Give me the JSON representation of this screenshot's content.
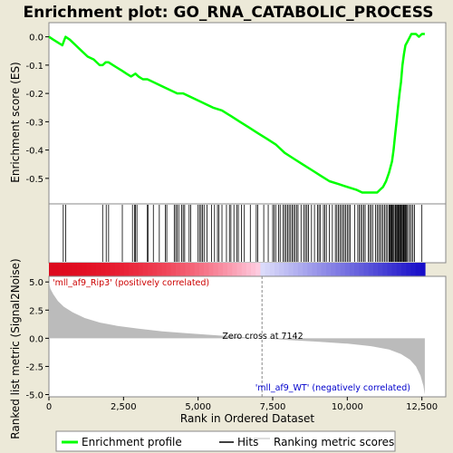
{
  "chart_data": {
    "type": "line",
    "title": "Enrichment plot: GO_RNA_CATABOLIC_PROCESS",
    "top_panel": {
      "ylabel": "Enrichment score (ES)",
      "ylim": [
        -0.59,
        0.05
      ],
      "yticks": [
        {
          "value": 0.0,
          "label": "0.0"
        },
        {
          "value": -0.1,
          "label": "-0.1"
        },
        {
          "value": -0.2,
          "label": "-0.2"
        },
        {
          "value": -0.3,
          "label": "-0.3"
        },
        {
          "value": -0.4,
          "label": "-0.4"
        },
        {
          "value": -0.5,
          "label": "-0.5"
        }
      ],
      "series": [
        {
          "name": "Enrichment profile",
          "color": "#00ff00",
          "x": [
            0,
            150,
            300,
            450,
            520,
            560,
            700,
            900,
            1100,
            1300,
            1500,
            1700,
            1800,
            1900,
            2000,
            2150,
            2300,
            2450,
            2600,
            2750,
            2900,
            3000,
            3150,
            3300,
            3500,
            3700,
            3900,
            4100,
            4300,
            4500,
            4700,
            4900,
            5100,
            5300,
            5500,
            5800,
            6100,
            6400,
            6700,
            7000,
            7300,
            7600,
            7900,
            8200,
            8500,
            8800,
            9100,
            9400,
            9700,
            10000,
            10300,
            10500,
            10700,
            10900,
            11000,
            11100,
            11200,
            11300,
            11400,
            11500,
            11550,
            11600,
            11650,
            11700,
            11750,
            11800,
            11850,
            11900,
            11950,
            12000,
            12050,
            12100,
            12150,
            12200,
            12300,
            12400,
            12500,
            12600
          ],
          "y": [
            0.0,
            -0.01,
            -0.02,
            -0.03,
            -0.01,
            0.0,
            -0.01,
            -0.03,
            -0.05,
            -0.07,
            -0.08,
            -0.1,
            -0.1,
            -0.09,
            -0.09,
            -0.1,
            -0.11,
            -0.12,
            -0.13,
            -0.14,
            -0.13,
            -0.14,
            -0.15,
            -0.15,
            -0.16,
            -0.17,
            -0.18,
            -0.19,
            -0.2,
            -0.2,
            -0.21,
            -0.22,
            -0.23,
            -0.24,
            -0.25,
            -0.26,
            -0.28,
            -0.3,
            -0.32,
            -0.34,
            -0.36,
            -0.38,
            -0.41,
            -0.43,
            -0.45,
            -0.47,
            -0.49,
            -0.51,
            -0.52,
            -0.53,
            -0.54,
            -0.55,
            -0.55,
            -0.55,
            -0.55,
            -0.54,
            -0.53,
            -0.51,
            -0.48,
            -0.44,
            -0.4,
            -0.35,
            -0.3,
            -0.25,
            -0.2,
            -0.16,
            -0.1,
            -0.06,
            -0.03,
            -0.02,
            -0.01,
            0.0,
            0.01,
            0.01,
            0.01,
            0.0,
            0.01,
            0.01
          ]
        }
      ]
    },
    "hits": [
      480,
      560,
      1800,
      1920,
      2000,
      2460,
      2800,
      2870,
      2900,
      2950,
      3300,
      3320,
      3500,
      3700,
      3900,
      3950,
      4200,
      4250,
      4300,
      4350,
      4450,
      4500,
      4550,
      4700,
      4750,
      5000,
      5050,
      5100,
      5150,
      5200,
      5300,
      5450,
      5550,
      5650,
      5700,
      5800,
      5950,
      6050,
      6100,
      6200,
      6300,
      6350,
      6450,
      6550,
      6750,
      6950,
      7000,
      7200,
      7350,
      7500,
      7550,
      7600,
      7700,
      7750,
      7850,
      7900,
      7950,
      8000,
      8050,
      8100,
      8150,
      8200,
      8250,
      8300,
      8350,
      8450,
      8550,
      8600,
      8650,
      8700,
      8800,
      8900,
      9000,
      9050,
      9100,
      9200,
      9250,
      9300,
      9400,
      9500,
      9600,
      9650,
      9700,
      9750,
      9800,
      9850,
      9900,
      9950,
      10000,
      10050,
      10100,
      10250,
      10350,
      10400,
      10450,
      10500,
      10550,
      10600,
      10700,
      10750,
      10800,
      10850,
      10950,
      11000,
      11050,
      11100,
      11150,
      11200,
      11250,
      11300,
      11350,
      11400,
      11420,
      11450,
      11480,
      11500,
      11530,
      11560,
      11600,
      11620,
      11650,
      11680,
      11700,
      11720,
      11750,
      11780,
      11800,
      11820,
      11850,
      11880,
      11900,
      11930,
      11950,
      11980,
      12000,
      12050,
      12100,
      12150,
      12200,
      12250,
      12500
    ],
    "bottom_panel": {
      "ylabel": "Ranked list metric (Signal2Noise)",
      "xlabel": "Rank in Ordered Dataset",
      "ylim": [
        -5.2,
        5.5
      ],
      "yticks": [
        {
          "value": 5.0,
          "label": "5.0"
        },
        {
          "value": 2.5,
          "label": "2.5"
        },
        {
          "value": 0.0,
          "label": "0.0"
        },
        {
          "value": -2.5,
          "label": "-2.5"
        },
        {
          "value": -5.0,
          "label": "-5.0"
        }
      ],
      "metric_curve": {
        "x": [
          0,
          50,
          150,
          300,
          500,
          800,
          1200,
          1700,
          2300,
          3000,
          3800,
          4600,
          5400,
          6200,
          7142,
          8000,
          9000,
          10000,
          10800,
          11400,
          11800,
          12100,
          12300,
          12450,
          12550,
          12600
        ],
        "y": [
          5.0,
          4.4,
          3.9,
          3.3,
          2.8,
          2.3,
          1.8,
          1.4,
          1.1,
          0.85,
          0.62,
          0.45,
          0.3,
          0.15,
          0.0,
          -0.15,
          -0.3,
          -0.48,
          -0.7,
          -1.0,
          -1.4,
          -1.9,
          -2.5,
          -3.3,
          -4.2,
          -5.0
        ]
      },
      "zero_cross_rank": 7142,
      "zero_cross_label": "Zero cross at 7142",
      "positive_label": "'mll_af9_Rip3' (positively correlated)",
      "negative_label": "'mll_af9_WT' (negatively correlated)",
      "positive_color": "#cc0000",
      "negative_color": "#0000cc"
    },
    "xlim": [
      0,
      13300
    ],
    "xticks": [
      {
        "value": 0,
        "label": "0"
      },
      {
        "value": 2500,
        "label": "2,500"
      },
      {
        "value": 5000,
        "label": "5,000"
      },
      {
        "value": 7500,
        "label": "7,500"
      },
      {
        "value": 10000,
        "label": "10,000"
      },
      {
        "value": 12500,
        "label": "12,500"
      }
    ],
    "n_ranks": 12600,
    "legend": [
      {
        "label": "Enrichment profile",
        "color": "#00ff00"
      },
      {
        "label": "Hits",
        "color": "#000000"
      },
      {
        "label": "Ranking metric scores",
        "color": "#bbbbbb"
      }
    ]
  }
}
